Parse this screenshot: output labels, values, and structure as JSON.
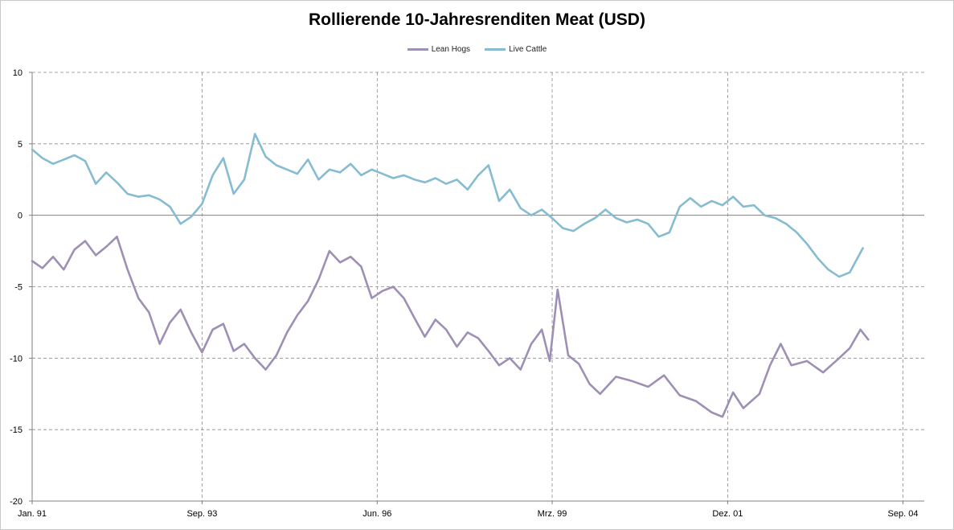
{
  "chart_data": {
    "type": "line",
    "title": "Rollierende 10-Jahresrenditen Meat (USD)",
    "xlabel": "",
    "ylabel": "",
    "ylim": [
      -20,
      10
    ],
    "yticks": [
      10,
      5,
      0,
      -5,
      -10,
      -15,
      -20
    ],
    "x_range": [
      "1991-01-01",
      "2005-01-01"
    ],
    "xtick_labels": [
      "Jan. 91",
      "Sep. 93",
      "Jun. 96",
      "Mrz. 99",
      "Dez. 01",
      "Sep. 04"
    ],
    "xtick_dates": [
      "1991-01-01",
      "1993-09-01",
      "1996-06-01",
      "1999-03-01",
      "2001-12-01",
      "2004-09-01"
    ],
    "grid": {
      "x": true,
      "y": true,
      "style": "dashed"
    },
    "legend_position": "top-center",
    "series": [
      {
        "name": "Lean Hogs",
        "color": "#9e8fb5",
        "points": [
          [
            "1991-01-01",
            -3.2
          ],
          [
            "1991-03-01",
            -3.7
          ],
          [
            "1991-05-01",
            -2.9
          ],
          [
            "1991-07-01",
            -3.8
          ],
          [
            "1991-09-01",
            -2.4
          ],
          [
            "1991-11-01",
            -1.8
          ],
          [
            "1992-01-01",
            -2.8
          ],
          [
            "1992-03-01",
            -2.2
          ],
          [
            "1992-05-01",
            -1.5
          ],
          [
            "1992-07-01",
            -3.8
          ],
          [
            "1992-09-01",
            -5.8
          ],
          [
            "1992-11-01",
            -6.8
          ],
          [
            "1993-01-01",
            -9.0
          ],
          [
            "1993-03-01",
            -7.5
          ],
          [
            "1993-05-01",
            -6.6
          ],
          [
            "1993-07-01",
            -8.2
          ],
          [
            "1993-09-01",
            -9.6
          ],
          [
            "1993-11-01",
            -8.0
          ],
          [
            "1994-01-01",
            -7.6
          ],
          [
            "1994-03-01",
            -9.5
          ],
          [
            "1994-05-01",
            -9.0
          ],
          [
            "1994-07-01",
            -10.0
          ],
          [
            "1994-09-01",
            -10.8
          ],
          [
            "1994-11-01",
            -9.8
          ],
          [
            "1995-01-01",
            -8.2
          ],
          [
            "1995-03-01",
            -7.0
          ],
          [
            "1995-05-01",
            -6.0
          ],
          [
            "1995-07-01",
            -4.5
          ],
          [
            "1995-09-01",
            -2.5
          ],
          [
            "1995-11-01",
            -3.3
          ],
          [
            "1996-01-01",
            -2.9
          ],
          [
            "1996-03-01",
            -3.6
          ],
          [
            "1996-05-01",
            -5.8
          ],
          [
            "1996-07-01",
            -5.3
          ],
          [
            "1996-09-01",
            -5.0
          ],
          [
            "1996-11-01",
            -5.8
          ],
          [
            "1997-01-01",
            -7.2
          ],
          [
            "1997-03-01",
            -8.5
          ],
          [
            "1997-05-01",
            -7.3
          ],
          [
            "1997-07-01",
            -8.0
          ],
          [
            "1997-09-01",
            -9.2
          ],
          [
            "1997-11-01",
            -8.2
          ],
          [
            "1998-01-01",
            -8.6
          ],
          [
            "1998-03-01",
            -9.5
          ],
          [
            "1998-05-01",
            -10.5
          ],
          [
            "1998-07-01",
            -10.0
          ],
          [
            "1998-09-01",
            -10.8
          ],
          [
            "1998-11-01",
            -9.0
          ],
          [
            "1999-01-01",
            -8.0
          ],
          [
            "1999-02-15",
            -10.2
          ],
          [
            "1999-04-01",
            -5.2
          ],
          [
            "1999-06-01",
            -9.8
          ],
          [
            "1999-08-01",
            -10.4
          ],
          [
            "1999-10-01",
            -11.8
          ],
          [
            "1999-12-01",
            -12.5
          ],
          [
            "2000-03-01",
            -11.3
          ],
          [
            "2000-06-01",
            -11.6
          ],
          [
            "2000-09-01",
            -12.0
          ],
          [
            "2000-12-01",
            -11.2
          ],
          [
            "2001-03-01",
            -12.6
          ],
          [
            "2001-06-01",
            -13.0
          ],
          [
            "2001-09-01",
            -13.8
          ],
          [
            "2001-11-01",
            -14.1
          ],
          [
            "2002-01-01",
            -12.4
          ],
          [
            "2002-03-01",
            -13.5
          ],
          [
            "2002-06-01",
            -12.5
          ],
          [
            "2002-08-01",
            -10.5
          ],
          [
            "2002-10-01",
            -9.0
          ],
          [
            "2002-12-01",
            -10.5
          ],
          [
            "2003-03-01",
            -10.2
          ],
          [
            "2003-06-01",
            -11.0
          ],
          [
            "2003-09-01",
            -10.0
          ],
          [
            "2003-11-01",
            -9.3
          ],
          [
            "2004-01-01",
            -8.0
          ],
          [
            "2004-02-15",
            -8.7
          ]
        ]
      },
      {
        "name": "Live Cattle",
        "color": "#86bcd1",
        "points": [
          [
            "1991-01-01",
            4.6
          ],
          [
            "1991-03-01",
            4.0
          ],
          [
            "1991-05-01",
            3.6
          ],
          [
            "1991-07-01",
            3.9
          ],
          [
            "1991-09-01",
            4.2
          ],
          [
            "1991-11-01",
            3.8
          ],
          [
            "1992-01-01",
            2.2
          ],
          [
            "1992-03-01",
            3.0
          ],
          [
            "1992-05-01",
            2.3
          ],
          [
            "1992-07-01",
            1.5
          ],
          [
            "1992-09-01",
            1.3
          ],
          [
            "1992-11-01",
            1.4
          ],
          [
            "1993-01-01",
            1.1
          ],
          [
            "1993-03-01",
            0.6
          ],
          [
            "1993-05-01",
            -0.6
          ],
          [
            "1993-07-01",
            -0.1
          ],
          [
            "1993-09-01",
            0.8
          ],
          [
            "1993-11-01",
            2.8
          ],
          [
            "1994-01-01",
            4.0
          ],
          [
            "1994-03-01",
            1.5
          ],
          [
            "1994-05-01",
            2.5
          ],
          [
            "1994-07-01",
            5.7
          ],
          [
            "1994-09-01",
            4.1
          ],
          [
            "1994-11-01",
            3.5
          ],
          [
            "1995-01-01",
            3.2
          ],
          [
            "1995-03-01",
            2.9
          ],
          [
            "1995-05-01",
            3.9
          ],
          [
            "1995-07-01",
            2.5
          ],
          [
            "1995-09-01",
            3.2
          ],
          [
            "1995-11-01",
            3.0
          ],
          [
            "1996-01-01",
            3.6
          ],
          [
            "1996-03-01",
            2.8
          ],
          [
            "1996-05-01",
            3.2
          ],
          [
            "1996-07-01",
            2.9
          ],
          [
            "1996-09-01",
            2.6
          ],
          [
            "1996-11-01",
            2.8
          ],
          [
            "1997-01-01",
            2.5
          ],
          [
            "1997-03-01",
            2.3
          ],
          [
            "1997-05-01",
            2.6
          ],
          [
            "1997-07-01",
            2.2
          ],
          [
            "1997-09-01",
            2.5
          ],
          [
            "1997-11-01",
            1.8
          ],
          [
            "1998-01-01",
            2.8
          ],
          [
            "1998-03-01",
            3.5
          ],
          [
            "1998-05-01",
            1.0
          ],
          [
            "1998-07-01",
            1.8
          ],
          [
            "1998-09-01",
            0.5
          ],
          [
            "1998-11-01",
            0.0
          ],
          [
            "1999-01-01",
            0.4
          ],
          [
            "1999-03-01",
            -0.2
          ],
          [
            "1999-05-01",
            -0.9
          ],
          [
            "1999-07-01",
            -1.1
          ],
          [
            "1999-09-01",
            -0.6
          ],
          [
            "1999-11-01",
            -0.2
          ],
          [
            "2000-01-01",
            0.4
          ],
          [
            "2000-03-01",
            -0.2
          ],
          [
            "2000-05-01",
            -0.5
          ],
          [
            "2000-07-01",
            -0.3
          ],
          [
            "2000-09-01",
            -0.6
          ],
          [
            "2000-11-01",
            -1.5
          ],
          [
            "2001-01-01",
            -1.2
          ],
          [
            "2001-03-01",
            0.6
          ],
          [
            "2001-05-01",
            1.2
          ],
          [
            "2001-07-01",
            0.6
          ],
          [
            "2001-09-01",
            1.0
          ],
          [
            "2001-11-01",
            0.7
          ],
          [
            "2002-01-01",
            1.3
          ],
          [
            "2002-03-01",
            0.6
          ],
          [
            "2002-05-01",
            0.7
          ],
          [
            "2002-07-01",
            0.0
          ],
          [
            "2002-09-01",
            -0.2
          ],
          [
            "2002-11-01",
            -0.6
          ],
          [
            "2003-01-01",
            -1.2
          ],
          [
            "2003-03-01",
            -2.0
          ],
          [
            "2003-05-01",
            -3.0
          ],
          [
            "2003-07-01",
            -3.8
          ],
          [
            "2003-09-01",
            -4.3
          ],
          [
            "2003-11-01",
            -4.0
          ],
          [
            "2004-01-15",
            -2.3
          ]
        ]
      }
    ]
  }
}
